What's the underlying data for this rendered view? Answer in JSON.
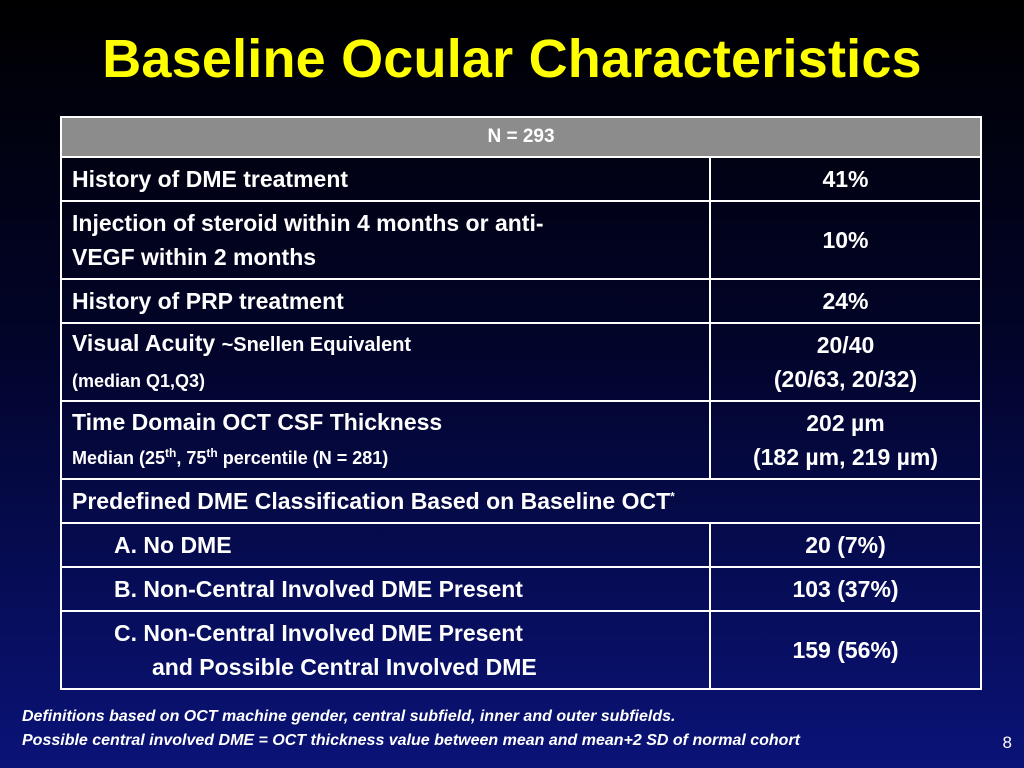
{
  "slide": {
    "title": "Baseline Ocular Characteristics",
    "page_number": "8"
  },
  "table": {
    "header": "N = 293",
    "rows": [
      {
        "label": "History of DME treatment",
        "value": "41%"
      },
      {
        "label_line1": "Injection of steroid within 4 months or anti-",
        "label_line2": "VEGF within 2 months",
        "value": "10%"
      },
      {
        "label": "History of PRP treatment",
        "value": "24%"
      },
      {
        "label_main": "Visual Acuity",
        "label_suffix": "~Snellen Equivalent",
        "label_sub": "(median Q1,Q3)",
        "value_line1": "20/40",
        "value_line2": "(20/63, 20/32)"
      },
      {
        "label": "Time Domain OCT CSF Thickness",
        "sub_a": "Median (25",
        "sup_a": "th",
        "sub_b": ", 75",
        "sup_b": "th",
        "sub_c": " percentile (N = 281)",
        "value_line1": "202 µm",
        "value_line2": "(182 µm, 219 µm)"
      },
      {
        "label": "Predefined DME Classification Based on Baseline OCT",
        "marker": "*"
      },
      {
        "label": "A. No DME",
        "value": "20 (7%)"
      },
      {
        "label": "B. Non-Central Involved DME Present",
        "value": "103 (37%)"
      },
      {
        "label_line1": "C. Non-Central Involved DME Present",
        "label_line2": "and Possible Central Involved DME",
        "value": "159 (56%)"
      }
    ]
  },
  "footnotes": [
    "Definitions based on OCT machine gender, central subfield, inner and outer subfields.",
    "Possible central involved DME = OCT thickness value between mean and mean+2 SD of normal cohort"
  ]
}
